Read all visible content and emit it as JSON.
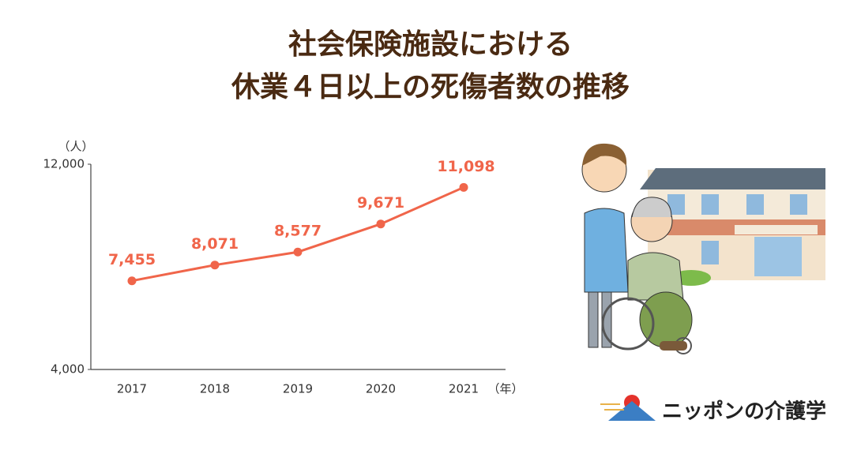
{
  "chart_data": {
    "type": "line",
    "title": [
      "社会保険施設における",
      "休業４日以上の死傷者数の推移"
    ],
    "y_unit": "（人）",
    "x_unit": "（年）",
    "categories": [
      "2017",
      "2018",
      "2019",
      "2020",
      "2021"
    ],
    "values": [
      7455,
      8071,
      8577,
      9671,
      11098
    ],
    "value_labels": [
      "7,455",
      "8,071",
      "8,577",
      "9,671",
      "11,098"
    ],
    "color": "#f0654a",
    "ylim": [
      4000,
      12000
    ],
    "yticks": [
      {
        "value": 4000,
        "label": "4,000"
      },
      {
        "value": 12000,
        "label": "12,000"
      }
    ],
    "grid": false,
    "logo": "ニッポンの介護学"
  }
}
